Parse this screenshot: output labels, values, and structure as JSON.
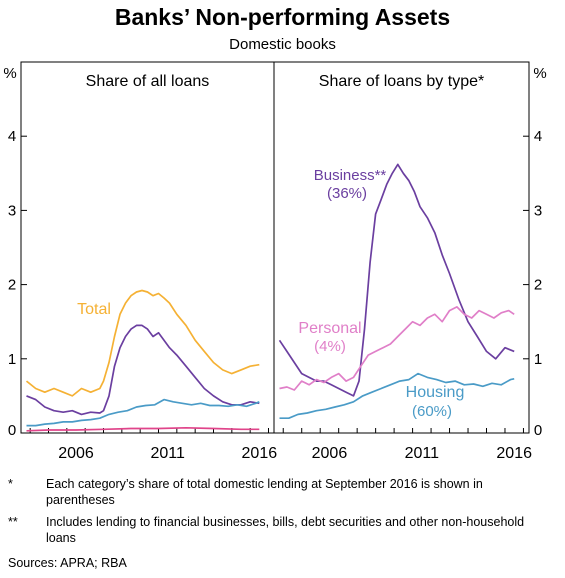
{
  "title": "Banks’ Non-performing Assets",
  "subtitle": "Domestic books",
  "footnotes": [
    {
      "marker": "*",
      "text": "Each category’s share of total domestic lending at September 2016 is shown in parentheses"
    },
    {
      "marker": "**",
      "text": "Includes lending to financial businesses, bills, debt securities and other non-household loans"
    }
  ],
  "sources": "Sources:   APRA; RBA",
  "colors": {
    "total": "#f5b134",
    "business": "#6b3fa0",
    "personal": "#e07fc8",
    "housing": "#4a9bc7",
    "bottom": "#e0448a"
  },
  "chart_data": [
    {
      "type": "line",
      "panel_title": "Share of all loans",
      "unit": "%",
      "xticks": [
        "2006",
        "2011",
        "2016"
      ],
      "xlim": [
        2003.5,
        2017.3
      ],
      "yticks": [
        "0",
        "1",
        "2",
        "3",
        "4"
      ],
      "ylim": [
        0,
        5
      ],
      "series": [
        {
          "name": "Total",
          "color_key": "total",
          "x": [
            2003.8,
            2004.3,
            2004.8,
            2005.3,
            2005.8,
            2006.3,
            2006.8,
            2007.3,
            2007.8,
            2008.0,
            2008.3,
            2008.6,
            2008.9,
            2009.2,
            2009.5,
            2009.8,
            2010.1,
            2010.4,
            2010.7,
            2011.0,
            2011.3,
            2011.6,
            2012.0,
            2012.5,
            2013.0,
            2013.5,
            2014.0,
            2014.5,
            2015.0,
            2015.5,
            2016.0,
            2016.5
          ],
          "y": [
            0.7,
            0.6,
            0.55,
            0.6,
            0.55,
            0.5,
            0.6,
            0.55,
            0.6,
            0.7,
            0.95,
            1.3,
            1.6,
            1.75,
            1.85,
            1.9,
            1.92,
            1.9,
            1.85,
            1.88,
            1.82,
            1.75,
            1.6,
            1.45,
            1.25,
            1.1,
            0.95,
            0.85,
            0.8,
            0.85,
            0.9,
            0.92
          ]
        },
        {
          "name": "",
          "color_key": "business",
          "x": [
            2003.8,
            2004.3,
            2004.8,
            2005.3,
            2005.8,
            2006.3,
            2006.8,
            2007.3,
            2007.8,
            2008.0,
            2008.3,
            2008.6,
            2008.9,
            2009.2,
            2009.5,
            2009.8,
            2010.1,
            2010.4,
            2010.7,
            2011.0,
            2011.3,
            2011.6,
            2012.0,
            2012.5,
            2013.0,
            2013.5,
            2014.0,
            2014.5,
            2015.0,
            2015.5,
            2016.0,
            2016.5
          ],
          "y": [
            0.5,
            0.45,
            0.35,
            0.3,
            0.28,
            0.3,
            0.25,
            0.28,
            0.27,
            0.3,
            0.5,
            0.9,
            1.15,
            1.3,
            1.4,
            1.45,
            1.45,
            1.4,
            1.3,
            1.35,
            1.25,
            1.15,
            1.05,
            0.9,
            0.75,
            0.6,
            0.5,
            0.42,
            0.38,
            0.38,
            0.42,
            0.4
          ]
        },
        {
          "name": "",
          "color_key": "housing",
          "x": [
            2003.8,
            2004.3,
            2004.8,
            2005.3,
            2005.8,
            2006.3,
            2006.8,
            2007.3,
            2007.8,
            2008.3,
            2008.8,
            2009.3,
            2009.8,
            2010.3,
            2010.8,
            2011.3,
            2011.8,
            2012.3,
            2012.8,
            2013.3,
            2013.8,
            2014.3,
            2014.8,
            2015.3,
            2015.8,
            2016.3,
            2016.5
          ],
          "y": [
            0.1,
            0.1,
            0.12,
            0.13,
            0.15,
            0.15,
            0.17,
            0.18,
            0.2,
            0.25,
            0.28,
            0.3,
            0.35,
            0.37,
            0.38,
            0.45,
            0.42,
            0.4,
            0.38,
            0.4,
            0.37,
            0.37,
            0.36,
            0.38,
            0.36,
            0.4,
            0.42
          ]
        },
        {
          "name": "",
          "color_key": "bottom",
          "x": [
            2003.8,
            2005.0,
            2006.5,
            2008.0,
            2009.5,
            2011.0,
            2012.5,
            2014.0,
            2015.5,
            2016.5
          ],
          "y": [
            0.03,
            0.04,
            0.04,
            0.05,
            0.06,
            0.06,
            0.07,
            0.06,
            0.05,
            0.05
          ]
        }
      ],
      "labels": [
        {
          "text": "Total",
          "color_key": "total"
        }
      ]
    },
    {
      "type": "line",
      "panel_title": "Share of loans by type*",
      "unit": "%",
      "xticks": [
        "2006",
        "2011",
        "2016"
      ],
      "xlim": [
        2003.5,
        2017.3
      ],
      "yticks": [
        "0",
        "1",
        "2",
        "3",
        "4"
      ],
      "ylim": [
        0,
        5
      ],
      "series": [
        {
          "name": "Business**",
          "color_key": "business",
          "x": [
            2003.8,
            2004.2,
            2004.6,
            2005.0,
            2005.4,
            2005.8,
            2006.2,
            2006.6,
            2007.0,
            2007.4,
            2007.8,
            2008.1,
            2008.4,
            2008.7,
            2009.0,
            2009.3,
            2009.6,
            2009.9,
            2010.2,
            2010.5,
            2010.8,
            2011.1,
            2011.4,
            2011.8,
            2012.2,
            2012.6,
            2013.0,
            2013.5,
            2014.0,
            2014.5,
            2015.0,
            2015.5,
            2016.0,
            2016.5
          ],
          "y": [
            1.25,
            1.1,
            0.95,
            0.8,
            0.75,
            0.7,
            0.7,
            0.65,
            0.6,
            0.55,
            0.5,
            0.7,
            1.4,
            2.3,
            2.95,
            3.15,
            3.35,
            3.5,
            3.62,
            3.5,
            3.4,
            3.25,
            3.05,
            2.9,
            2.7,
            2.4,
            2.15,
            1.8,
            1.5,
            1.3,
            1.1,
            1.0,
            1.15,
            1.1
          ]
        },
        {
          "name": "Personal",
          "color_key": "personal",
          "x": [
            2003.8,
            2004.2,
            2004.6,
            2005.0,
            2005.4,
            2005.8,
            2006.2,
            2006.6,
            2007.0,
            2007.4,
            2007.8,
            2008.2,
            2008.6,
            2009.0,
            2009.4,
            2009.8,
            2010.2,
            2010.6,
            2011.0,
            2011.4,
            2011.8,
            2012.2,
            2012.6,
            2013.0,
            2013.4,
            2013.8,
            2014.2,
            2014.6,
            2015.0,
            2015.4,
            2015.8,
            2016.2,
            2016.5
          ],
          "y": [
            0.6,
            0.62,
            0.58,
            0.7,
            0.65,
            0.72,
            0.68,
            0.75,
            0.8,
            0.7,
            0.75,
            0.9,
            1.05,
            1.1,
            1.15,
            1.2,
            1.3,
            1.4,
            1.5,
            1.45,
            1.55,
            1.6,
            1.5,
            1.65,
            1.7,
            1.6,
            1.55,
            1.65,
            1.6,
            1.55,
            1.62,
            1.65,
            1.6
          ]
        },
        {
          "name": "Housing",
          "color_key": "housing",
          "x": [
            2003.8,
            2004.3,
            2004.8,
            2005.3,
            2005.8,
            2006.3,
            2006.8,
            2007.3,
            2007.8,
            2008.3,
            2008.8,
            2009.3,
            2009.8,
            2010.3,
            2010.8,
            2011.3,
            2011.8,
            2012.3,
            2012.8,
            2013.3,
            2013.8,
            2014.3,
            2014.8,
            2015.3,
            2015.8,
            2016.3,
            2016.5
          ],
          "y": [
            0.2,
            0.2,
            0.25,
            0.27,
            0.3,
            0.32,
            0.35,
            0.38,
            0.42,
            0.5,
            0.55,
            0.6,
            0.65,
            0.7,
            0.72,
            0.8,
            0.75,
            0.72,
            0.68,
            0.7,
            0.65,
            0.66,
            0.63,
            0.67,
            0.65,
            0.72,
            0.73
          ]
        }
      ],
      "labels": [
        {
          "text": "Business**",
          "color_key": "business"
        },
        {
          "text": "(36%)",
          "color_key": "business"
        },
        {
          "text": "Personal",
          "color_key": "personal"
        },
        {
          "text": "(4%)",
          "color_key": "personal"
        },
        {
          "text": "Housing",
          "color_key": "housing"
        },
        {
          "text": "(60%)",
          "color_key": "housing"
        }
      ]
    }
  ]
}
